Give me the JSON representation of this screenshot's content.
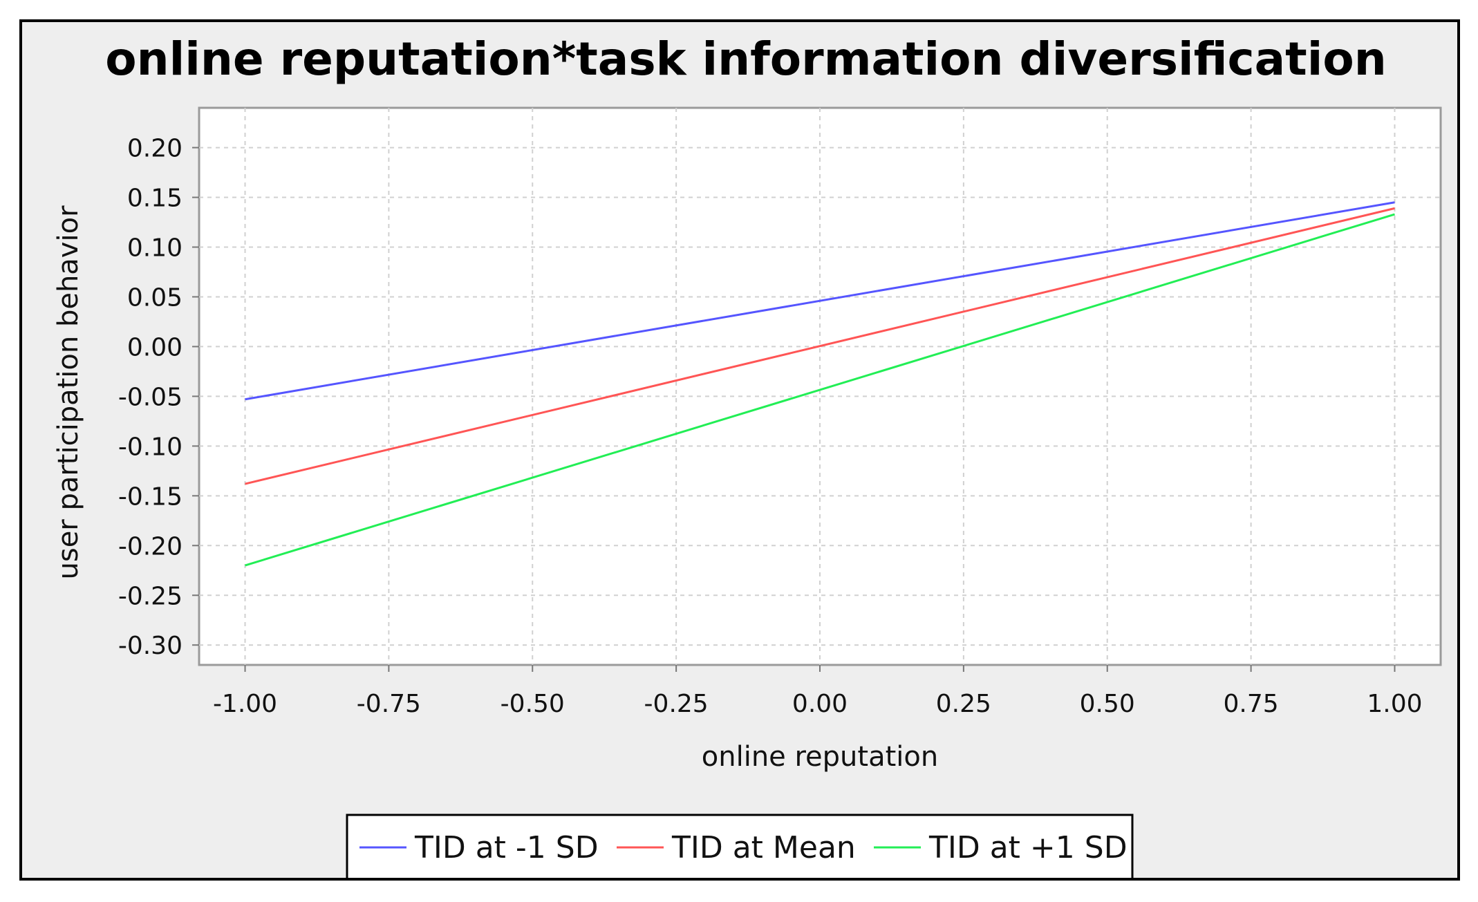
{
  "chart_data": {
    "type": "line",
    "title": "online reputation*task information diversification",
    "xlabel": "online reputation",
    "ylabel": "user participation behavior",
    "xlim": [
      -1.08,
      1.08
    ],
    "ylim": [
      -0.32,
      0.24
    ],
    "x_ticks": [
      -1.0,
      -0.75,
      -0.5,
      -0.25,
      0.0,
      0.25,
      0.5,
      0.75,
      1.0
    ],
    "x_tick_labels": [
      "-1.00",
      "-0.75",
      "-0.50",
      "-0.25",
      "0.00",
      "0.25",
      "0.50",
      "0.75",
      "1.00"
    ],
    "y_ticks": [
      0.2,
      0.15,
      0.1,
      0.05,
      0.0,
      -0.05,
      -0.1,
      -0.15,
      -0.2,
      -0.25,
      -0.3
    ],
    "y_tick_labels": [
      "0.20",
      "0.15",
      "0.10",
      "0.05",
      "0.00",
      "-0.05",
      "-0.10",
      "-0.15",
      "-0.20",
      "-0.25",
      "-0.30"
    ],
    "grid": true,
    "legend_position": "bottom",
    "series": [
      {
        "name": "TID at -1 SD",
        "color": "#5555ff",
        "x": [
          -1.0,
          1.0
        ],
        "y": [
          -0.053,
          0.145
        ]
      },
      {
        "name": "TID at Mean",
        "color": "#ff5555",
        "x": [
          -1.0,
          1.0
        ],
        "y": [
          -0.138,
          0.139
        ]
      },
      {
        "name": "TID at +1 SD",
        "color": "#22ee55",
        "x": [
          -1.0,
          1.0
        ],
        "y": [
          -0.22,
          0.133
        ]
      }
    ]
  }
}
